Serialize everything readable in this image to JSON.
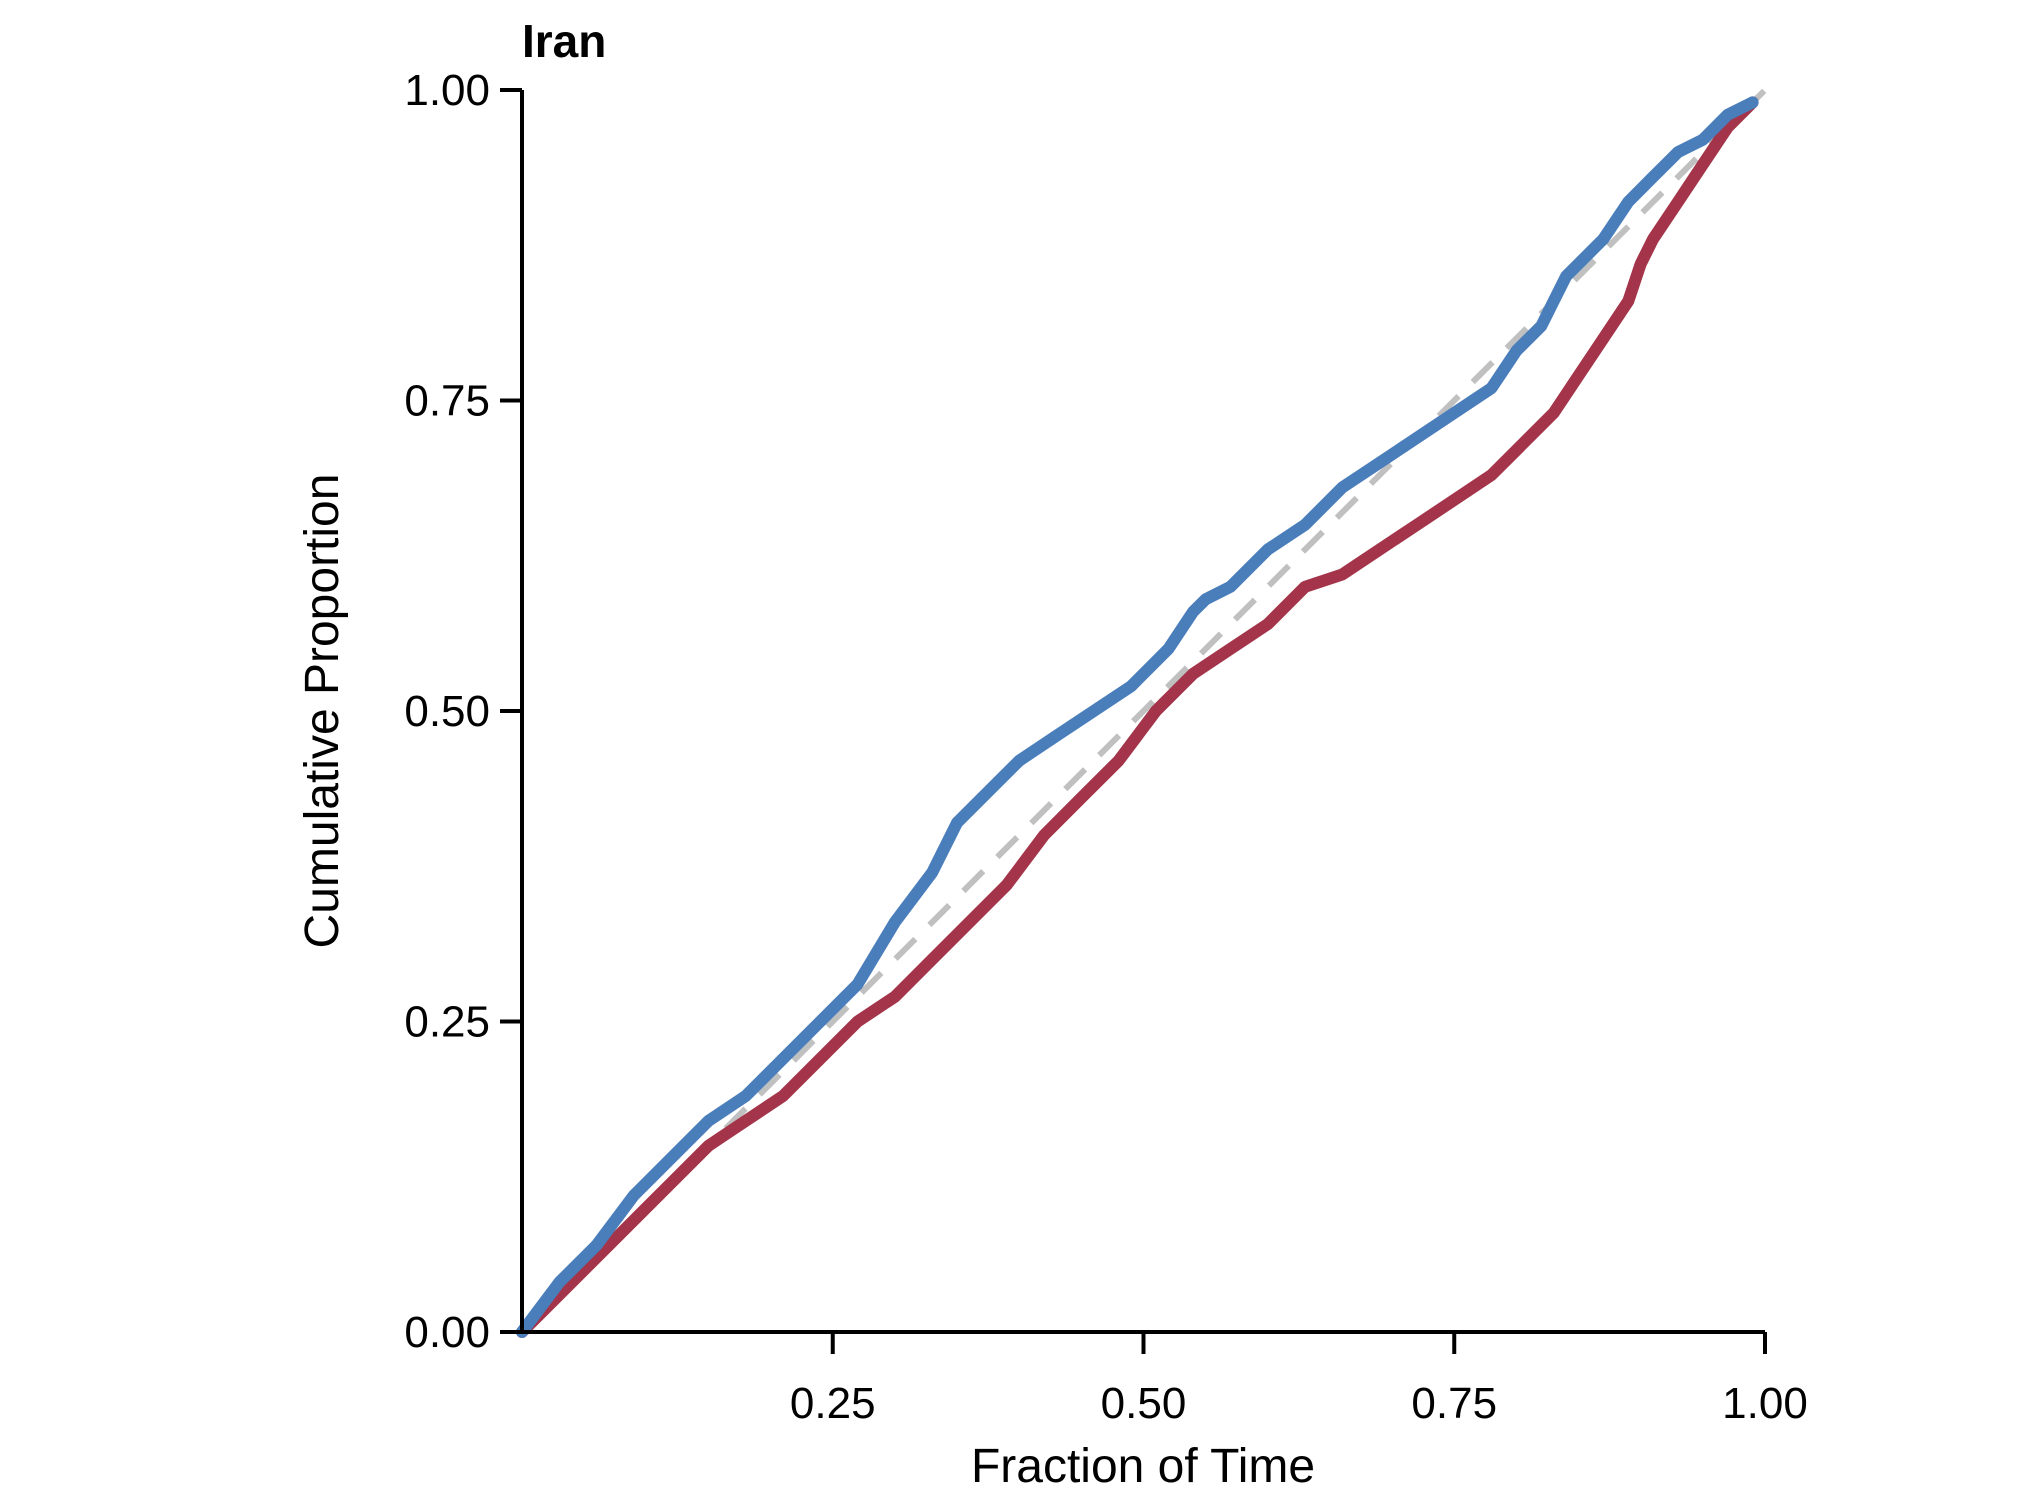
{
  "chart_data": {
    "type": "line",
    "title": "Iran",
    "xlabel": "Fraction of Time",
    "ylabel": "Cumulative Proportion",
    "xlim": [
      0.0,
      1.0
    ],
    "ylim": [
      0.0,
      1.0
    ],
    "xticks": [
      "0.25",
      "0.50",
      "0.75",
      "1.00"
    ],
    "yticks": [
      "0.00",
      "0.25",
      "0.50",
      "0.75",
      "1.00"
    ],
    "grid": false,
    "legend": "none",
    "series": [
      {
        "color": "#4a7ebb",
        "x": [
          0.0,
          0.03,
          0.06,
          0.09,
          0.12,
          0.15,
          0.18,
          0.21,
          0.24,
          0.27,
          0.3,
          0.33,
          0.35,
          0.37,
          0.4,
          0.43,
          0.46,
          0.49,
          0.52,
          0.54,
          0.55,
          0.57,
          0.6,
          0.63,
          0.66,
          0.69,
          0.72,
          0.75,
          0.78,
          0.8,
          0.82,
          0.83,
          0.84,
          0.85,
          0.87,
          0.89,
          0.91,
          0.93,
          0.95,
          0.97,
          0.99
        ],
        "y": [
          0.0,
          0.04,
          0.07,
          0.11,
          0.14,
          0.17,
          0.19,
          0.22,
          0.25,
          0.28,
          0.33,
          0.37,
          0.41,
          0.43,
          0.46,
          0.48,
          0.5,
          0.52,
          0.55,
          0.58,
          0.59,
          0.6,
          0.63,
          0.65,
          0.68,
          0.7,
          0.72,
          0.74,
          0.76,
          0.79,
          0.81,
          0.83,
          0.85,
          0.86,
          0.88,
          0.91,
          0.93,
          0.95,
          0.96,
          0.98,
          0.99
        ]
      },
      {
        "color": "#a3344a",
        "x": [
          0.0,
          0.03,
          0.06,
          0.09,
          0.12,
          0.15,
          0.18,
          0.21,
          0.24,
          0.27,
          0.3,
          0.33,
          0.36,
          0.39,
          0.42,
          0.45,
          0.48,
          0.51,
          0.54,
          0.57,
          0.6,
          0.63,
          0.66,
          0.69,
          0.72,
          0.75,
          0.78,
          0.81,
          0.83,
          0.85,
          0.87,
          0.89,
          0.9,
          0.91,
          0.93,
          0.95,
          0.97,
          0.99
        ],
        "y": [
          0.0,
          0.03,
          0.06,
          0.09,
          0.12,
          0.15,
          0.17,
          0.19,
          0.22,
          0.25,
          0.27,
          0.3,
          0.33,
          0.36,
          0.4,
          0.43,
          0.46,
          0.5,
          0.53,
          0.55,
          0.57,
          0.6,
          0.61,
          0.63,
          0.65,
          0.67,
          0.69,
          0.72,
          0.74,
          0.77,
          0.8,
          0.83,
          0.86,
          0.88,
          0.91,
          0.94,
          0.97,
          0.99
        ]
      },
      {
        "color": "#c0c0c0",
        "dashed": true,
        "x": [
          0.0,
          1.0
        ],
        "y": [
          0.0,
          1.0
        ]
      }
    ]
  }
}
